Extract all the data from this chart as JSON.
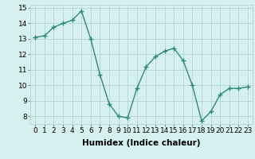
{
  "x": [
    0,
    1,
    2,
    3,
    4,
    5,
    6,
    7,
    8,
    9,
    10,
    11,
    12,
    13,
    14,
    15,
    16,
    17,
    18,
    19,
    20,
    21,
    22,
    23
  ],
  "y": [
    13.1,
    13.2,
    13.75,
    14.0,
    14.2,
    14.8,
    13.0,
    10.7,
    8.8,
    8.0,
    7.9,
    9.8,
    11.2,
    11.85,
    12.2,
    12.4,
    11.6,
    10.0,
    7.7,
    8.3,
    9.4,
    9.8,
    9.8,
    9.9
  ],
  "line_color": "#2e8b74",
  "marker": "+",
  "marker_size": 4,
  "linewidth": 1.0,
  "xlabel": "Humidex (Indice chaleur)",
  "xlabel_fontsize": 7.5,
  "ylim": [
    7.5,
    15.2
  ],
  "xlim": [
    -0.5,
    23.5
  ],
  "yticks": [
    8,
    9,
    10,
    11,
    12,
    13,
    14,
    15
  ],
  "xticks": [
    0,
    1,
    2,
    3,
    4,
    5,
    6,
    7,
    8,
    9,
    10,
    11,
    12,
    13,
    14,
    15,
    16,
    17,
    18,
    19,
    20,
    21,
    22,
    23
  ],
  "xtick_labels": [
    "0",
    "1",
    "2",
    "3",
    "4",
    "5",
    "6",
    "7",
    "8",
    "9",
    "10",
    "11",
    "12",
    "13",
    "14",
    "15",
    "16",
    "17",
    "18",
    "19",
    "20",
    "21",
    "22",
    "23"
  ],
  "bg_color": "#d6f0f0",
  "grid_color": "#b8d8d8",
  "tick_fontsize": 6.5,
  "markeredgewidth": 1.0
}
